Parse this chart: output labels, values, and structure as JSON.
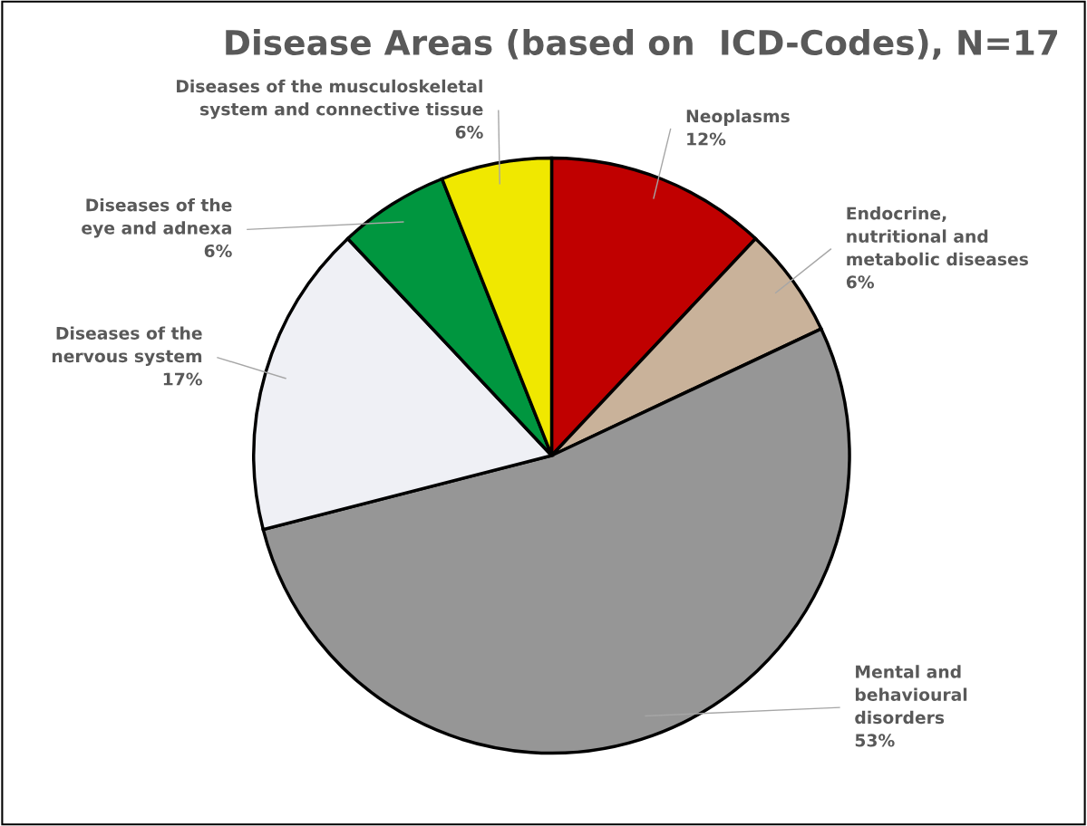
{
  "chart_data": {
    "type": "pie",
    "title": "Disease Areas (based on  ICD-Codes), N=17",
    "categories": [
      "Neoplasms",
      "Endocrine,\nnutritional and\nmetabolic diseases",
      "Mental and\nbehavioural\ndisorders",
      "Diseases of the\nnervous system",
      "Diseases of the\neye and adnexa",
      "Diseases of the musculoskeletal\nsystem and connective tissue"
    ],
    "values": [
      12,
      6,
      53,
      17,
      6,
      6
    ],
    "colors": [
      "#c00000",
      "#c9b29a",
      "#969696",
      "#eff0f5",
      "#00963f",
      "#f0e800"
    ],
    "value_labels": [
      "12%",
      "6%",
      "53%",
      "17%",
      "6%",
      "6%"
    ]
  }
}
